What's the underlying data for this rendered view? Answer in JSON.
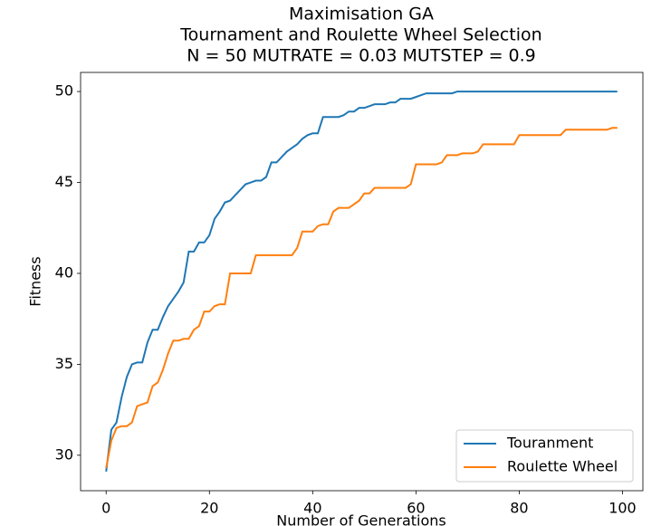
{
  "chart_data": {
    "type": "line",
    "title": "Maximisation GA",
    "subtitle": [
      "Tournament and Roulette Wheel Selection",
      "N = 50 MUTRATE = 0.03 MUTSTEP = 0.9"
    ],
    "x_label": "Number of Generations",
    "y_label": "Fitness",
    "x": [
      0,
      1,
      2,
      3,
      4,
      5,
      6,
      7,
      8,
      9,
      10,
      11,
      12,
      13,
      14,
      15,
      16,
      17,
      18,
      19,
      20,
      21,
      22,
      23,
      24,
      25,
      26,
      27,
      28,
      29,
      30,
      31,
      32,
      33,
      34,
      35,
      36,
      37,
      38,
      39,
      40,
      41,
      42,
      43,
      44,
      45,
      46,
      47,
      48,
      49,
      50,
      51,
      52,
      53,
      54,
      55,
      56,
      57,
      58,
      59,
      60,
      61,
      62,
      63,
      64,
      65,
      66,
      67,
      68,
      69,
      70,
      71,
      72,
      73,
      74,
      75,
      76,
      77,
      78,
      79,
      80,
      81,
      82,
      83,
      84,
      85,
      86,
      87,
      88,
      89,
      90,
      91,
      92,
      93,
      94,
      95,
      96,
      97,
      98,
      99
    ],
    "series": [
      {
        "name": "Touranment",
        "color": "#1f77b4",
        "values": [
          29.1,
          31.4,
          31.8,
          33.2,
          34.3,
          35.0,
          35.1,
          35.1,
          36.2,
          36.9,
          36.9,
          37.6,
          38.2,
          38.6,
          39.0,
          39.5,
          41.2,
          41.2,
          41.7,
          41.7,
          42.1,
          43.0,
          43.4,
          43.9,
          44.0,
          44.3,
          44.6,
          44.9,
          45.0,
          45.1,
          45.1,
          45.3,
          46.1,
          46.1,
          46.4,
          46.7,
          46.9,
          47.1,
          47.4,
          47.6,
          47.7,
          47.7,
          48.6,
          48.6,
          48.6,
          48.6,
          48.7,
          48.9,
          48.9,
          49.1,
          49.1,
          49.2,
          49.3,
          49.3,
          49.3,
          49.4,
          49.4,
          49.6,
          49.6,
          49.6,
          49.7,
          49.8,
          49.9,
          49.9,
          49.9,
          49.9,
          49.9,
          49.9,
          50.0,
          50.0,
          50.0,
          50.0,
          50.0,
          50.0,
          50.0,
          50.0,
          50.0,
          50.0,
          50.0,
          50.0,
          50.0,
          50.0,
          50.0,
          50.0,
          50.0,
          50.0,
          50.0,
          50.0,
          50.0,
          50.0,
          50.0,
          50.0,
          50.0,
          50.0,
          50.0,
          50.0,
          50.0,
          50.0,
          50.0,
          50.0
        ]
      },
      {
        "name": "Roulette Wheel",
        "color": "#ff7f0e",
        "values": [
          29.3,
          30.8,
          31.5,
          31.6,
          31.6,
          31.8,
          32.7,
          32.8,
          32.9,
          33.8,
          34.0,
          34.7,
          35.6,
          36.3,
          36.3,
          36.4,
          36.4,
          36.9,
          37.1,
          37.9,
          37.9,
          38.2,
          38.3,
          38.3,
          40.0,
          40.0,
          40.0,
          40.0,
          40.0,
          41.0,
          41.0,
          41.0,
          41.0,
          41.0,
          41.0,
          41.0,
          41.0,
          41.4,
          42.3,
          42.3,
          42.3,
          42.6,
          42.7,
          42.7,
          43.4,
          43.6,
          43.6,
          43.6,
          43.8,
          44.0,
          44.4,
          44.4,
          44.7,
          44.7,
          44.7,
          44.7,
          44.7,
          44.7,
          44.7,
          44.9,
          46.0,
          46.0,
          46.0,
          46.0,
          46.0,
          46.1,
          46.5,
          46.5,
          46.5,
          46.6,
          46.6,
          46.6,
          46.7,
          47.1,
          47.1,
          47.1,
          47.1,
          47.1,
          47.1,
          47.1,
          47.6,
          47.6,
          47.6,
          47.6,
          47.6,
          47.6,
          47.6,
          47.6,
          47.6,
          47.9,
          47.9,
          47.9,
          47.9,
          47.9,
          47.9,
          47.9,
          47.9,
          47.9,
          48.0,
          48.0
        ]
      }
    ],
    "xlim": [
      -4.95,
      103.95
    ],
    "ylim": [
      28.05,
      51.05
    ],
    "xticks": [
      0,
      20,
      40,
      60,
      80,
      100
    ],
    "yticks": [
      30,
      35,
      40,
      45,
      50
    ],
    "legend": "lower right"
  }
}
